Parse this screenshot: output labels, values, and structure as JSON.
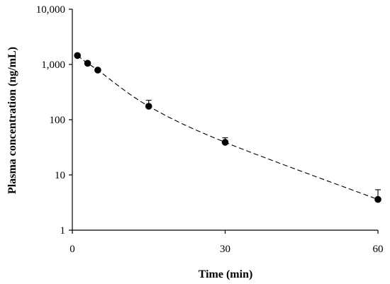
{
  "chart_data": {
    "type": "scatter",
    "title": "",
    "xlabel": "Time (min)",
    "ylabel": "Plasma concentration (ng/mL)",
    "xlim": [
      0,
      60
    ],
    "ylim": [
      1,
      10000
    ],
    "y_scale": "log",
    "x_ticks": [
      0,
      30,
      60
    ],
    "x_tick_labels": [
      "0",
      "30",
      "60"
    ],
    "y_ticks": [
      1,
      10,
      100,
      1000,
      10000
    ],
    "y_tick_labels": [
      "1",
      "10",
      "100",
      "1,000",
      "10,000"
    ],
    "grid": false,
    "legend": "none",
    "series": [
      {
        "x": [
          1,
          3,
          5,
          15,
          30,
          60
        ],
        "y": [
          1450,
          1050,
          790,
          175,
          39,
          3.6
        ],
        "error_upper": [
          1550,
          1120,
          840,
          225,
          47,
          5.4
        ],
        "marker": "filled-circle",
        "color": "#000000",
        "fit_line": "dashed"
      }
    ]
  }
}
